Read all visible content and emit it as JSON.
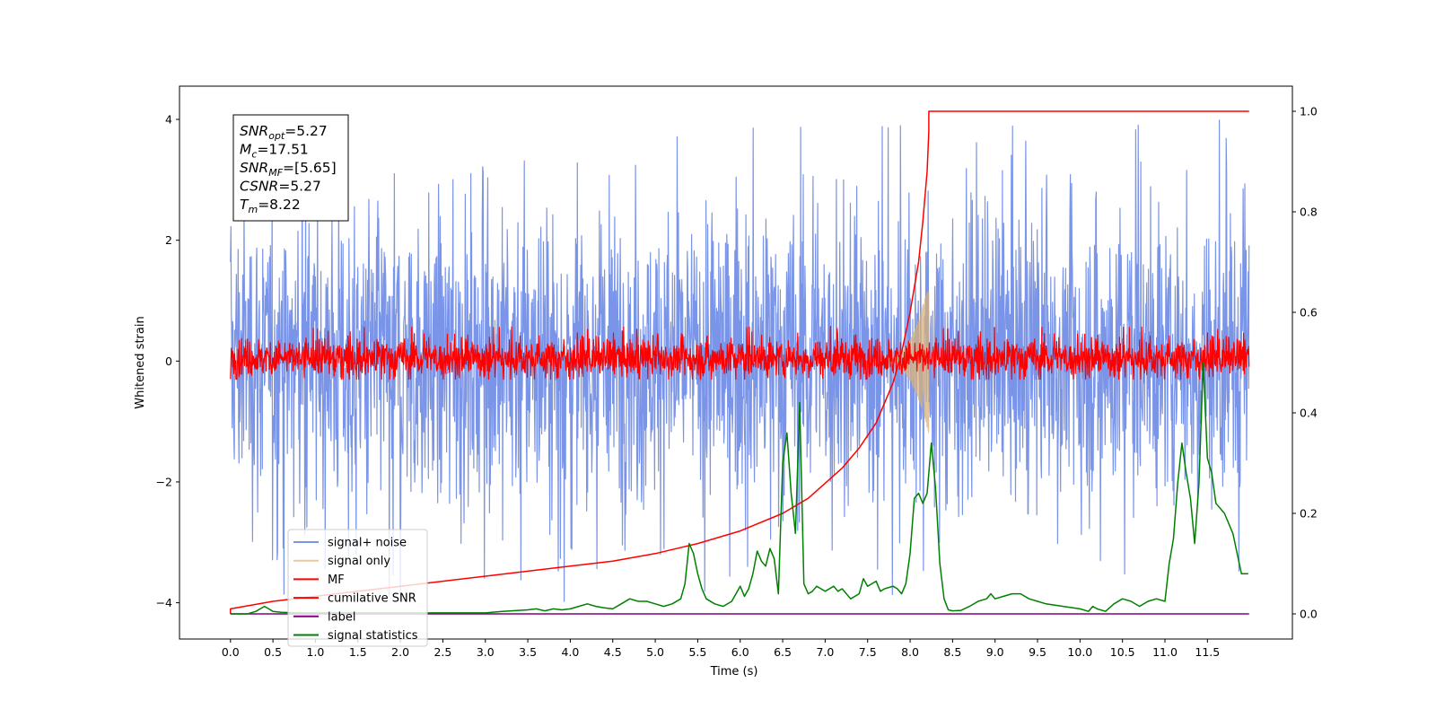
{
  "chart_data": {
    "type": "line",
    "title": "",
    "xlabel": "Time (s)",
    "ylabel": "Whitened strain",
    "ylabel_right": "",
    "xlim": [
      -0.6,
      12.5
    ],
    "ylim": [
      -4.6,
      4.55
    ],
    "ylim_right": [
      -0.05,
      1.05
    ],
    "x_ticks": [
      0.0,
      0.5,
      1.0,
      1.5,
      2.0,
      2.5,
      3.0,
      3.5,
      4.0,
      4.5,
      5.0,
      5.5,
      6.0,
      6.5,
      7.0,
      7.5,
      8.0,
      8.5,
      9.0,
      9.5,
      10.0,
      10.5,
      11.0,
      11.5
    ],
    "x_tick_labels": [
      "0.0",
      "0.5",
      "1.0",
      "1.5",
      "2.0",
      "2.5",
      "3.0",
      "3.5",
      "4.0",
      "4.5",
      "5.0",
      "5.5",
      "6.0",
      "6.5",
      "7.0",
      "7.5",
      "8.0",
      "8.5",
      "9.0",
      "9.5",
      "10.0",
      "10.5",
      "11.0",
      "11.5"
    ],
    "y_ticks": [
      -4,
      -2,
      0,
      2,
      4
    ],
    "y_tick_labels": [
      "−4",
      "−2",
      "0",
      "2",
      "4"
    ],
    "y_ticks_right": [
      0.0,
      0.2,
      0.4,
      0.6,
      0.8,
      1.0
    ],
    "y_tick_labels_right": [
      "0.0",
      "0.2",
      "0.4",
      "0.6",
      "0.8",
      "1.0"
    ],
    "grid": false,
    "legend_position": "lower-left",
    "annotation": {
      "lines": [
        {
          "base": "SNR",
          "sub": "opt",
          "rest": "=5.27"
        },
        {
          "base": "M",
          "sub": "c",
          "rest": "=17.51"
        },
        {
          "base": "SNR",
          "sub": "MF",
          "rest": "=[5.65]"
        },
        {
          "base": "CSNR",
          "sub": "",
          "rest": "=5.27"
        },
        {
          "base": "T",
          "sub": "m",
          "rest": "=8.22"
        }
      ]
    },
    "series": [
      {
        "name": "signal+ noise",
        "axis": "left",
        "color": "#7a94e8",
        "kind": "noise",
        "x_range": [
          0.0,
          11.99
        ],
        "amplitude_range": [
          -4.15,
          4.15
        ],
        "typical_range": [
          -2.2,
          2.3
        ]
      },
      {
        "name": "signal only",
        "axis": "left",
        "color": "#d8b27a",
        "kind": "chirp",
        "x_range": [
          7.6,
          8.22
        ],
        "peak_amplitude": 1.3,
        "min_amplitude": -1.2
      },
      {
        "name": "MF",
        "axis": "left",
        "color": "#ff0000",
        "kind": "noise",
        "x_range": [
          0.0,
          11.99
        ],
        "amplitude_range": [
          -0.3,
          0.7
        ],
        "typical_range": [
          -0.25,
          0.35
        ]
      },
      {
        "name": "cumilative SNR",
        "axis": "right",
        "color": "#ff0000",
        "x": [
          0.0,
          0.0,
          0.5,
          1.0,
          1.5,
          2.0,
          2.5,
          3.0,
          3.5,
          4.0,
          4.5,
          5.0,
          5.5,
          6.0,
          6.5,
          6.8,
          7.0,
          7.2,
          7.4,
          7.6,
          7.8,
          7.9,
          8.0,
          8.1,
          8.15,
          8.2,
          8.22,
          8.22,
          11.99
        ],
        "y": [
          0.0,
          0.01,
          0.025,
          0.035,
          0.045,
          0.055,
          0.065,
          0.075,
          0.085,
          0.095,
          0.105,
          0.12,
          0.14,
          0.165,
          0.2,
          0.23,
          0.26,
          0.29,
          0.33,
          0.38,
          0.46,
          0.52,
          0.6,
          0.7,
          0.78,
          0.88,
          0.96,
          1.0,
          1.0
        ]
      },
      {
        "name": "label",
        "axis": "right",
        "color": "#800080",
        "x": [
          0.0,
          11.99
        ],
        "y": [
          0.0,
          0.0
        ]
      },
      {
        "name": "signal statistics",
        "axis": "right",
        "color": "#008000",
        "x": [
          0.0,
          0.2,
          0.3,
          0.35,
          0.4,
          0.45,
          0.5,
          0.6,
          0.8,
          1.0,
          1.5,
          2.0,
          2.5,
          3.0,
          3.2,
          3.5,
          3.6,
          3.7,
          3.8,
          3.9,
          4.0,
          4.1,
          4.2,
          4.3,
          4.4,
          4.5,
          4.6,
          4.7,
          4.8,
          4.9,
          5.0,
          5.1,
          5.2,
          5.3,
          5.35,
          5.4,
          5.45,
          5.5,
          5.55,
          5.6,
          5.7,
          5.8,
          5.9,
          6.0,
          6.05,
          6.1,
          6.15,
          6.2,
          6.25,
          6.3,
          6.35,
          6.4,
          6.45,
          6.5,
          6.55,
          6.6,
          6.65,
          6.7,
          6.75,
          6.8,
          6.85,
          6.9,
          6.95,
          7.0,
          7.05,
          7.1,
          7.15,
          7.2,
          7.3,
          7.4,
          7.45,
          7.5,
          7.55,
          7.6,
          7.65,
          7.7,
          7.8,
          7.85,
          7.9,
          7.95,
          8.0,
          8.05,
          8.1,
          8.15,
          8.2,
          8.25,
          8.3,
          8.35,
          8.4,
          8.45,
          8.5,
          8.6,
          8.7,
          8.8,
          8.9,
          8.95,
          9.0,
          9.1,
          9.2,
          9.3,
          9.4,
          9.5,
          9.6,
          9.8,
          10.0,
          10.1,
          10.15,
          10.2,
          10.3,
          10.4,
          10.5,
          10.6,
          10.7,
          10.8,
          10.9,
          11.0,
          11.05,
          11.1,
          11.15,
          11.2,
          11.25,
          11.3,
          11.35,
          11.4,
          11.45,
          11.5,
          11.55,
          11.6,
          11.7,
          11.8,
          11.9,
          11.98
        ],
        "y": [
          0.0,
          0.0,
          0.005,
          0.01,
          0.015,
          0.01,
          0.005,
          0.003,
          0.002,
          0.002,
          0.002,
          0.002,
          0.002,
          0.002,
          0.005,
          0.008,
          0.01,
          0.006,
          0.01,
          0.008,
          0.01,
          0.015,
          0.02,
          0.015,
          0.012,
          0.01,
          0.02,
          0.03,
          0.025,
          0.025,
          0.02,
          0.015,
          0.02,
          0.03,
          0.06,
          0.14,
          0.12,
          0.08,
          0.05,
          0.03,
          0.02,
          0.015,
          0.025,
          0.055,
          0.035,
          0.05,
          0.08,
          0.125,
          0.105,
          0.095,
          0.13,
          0.11,
          0.04,
          0.3,
          0.36,
          0.24,
          0.16,
          0.42,
          0.06,
          0.04,
          0.045,
          0.055,
          0.05,
          0.045,
          0.05,
          0.055,
          0.045,
          0.05,
          0.03,
          0.04,
          0.07,
          0.055,
          0.06,
          0.065,
          0.045,
          0.05,
          0.055,
          0.05,
          0.04,
          0.06,
          0.12,
          0.23,
          0.24,
          0.22,
          0.24,
          0.34,
          0.25,
          0.1,
          0.03,
          0.008,
          0.006,
          0.007,
          0.015,
          0.025,
          0.03,
          0.04,
          0.03,
          0.035,
          0.04,
          0.04,
          0.03,
          0.025,
          0.02,
          0.015,
          0.01,
          0.005,
          0.015,
          0.01,
          0.005,
          0.02,
          0.03,
          0.025,
          0.015,
          0.025,
          0.03,
          0.025,
          0.1,
          0.15,
          0.26,
          0.34,
          0.28,
          0.23,
          0.14,
          0.26,
          0.5,
          0.31,
          0.28,
          0.22,
          0.2,
          0.16,
          0.08,
          0.08
        ]
      }
    ]
  }
}
